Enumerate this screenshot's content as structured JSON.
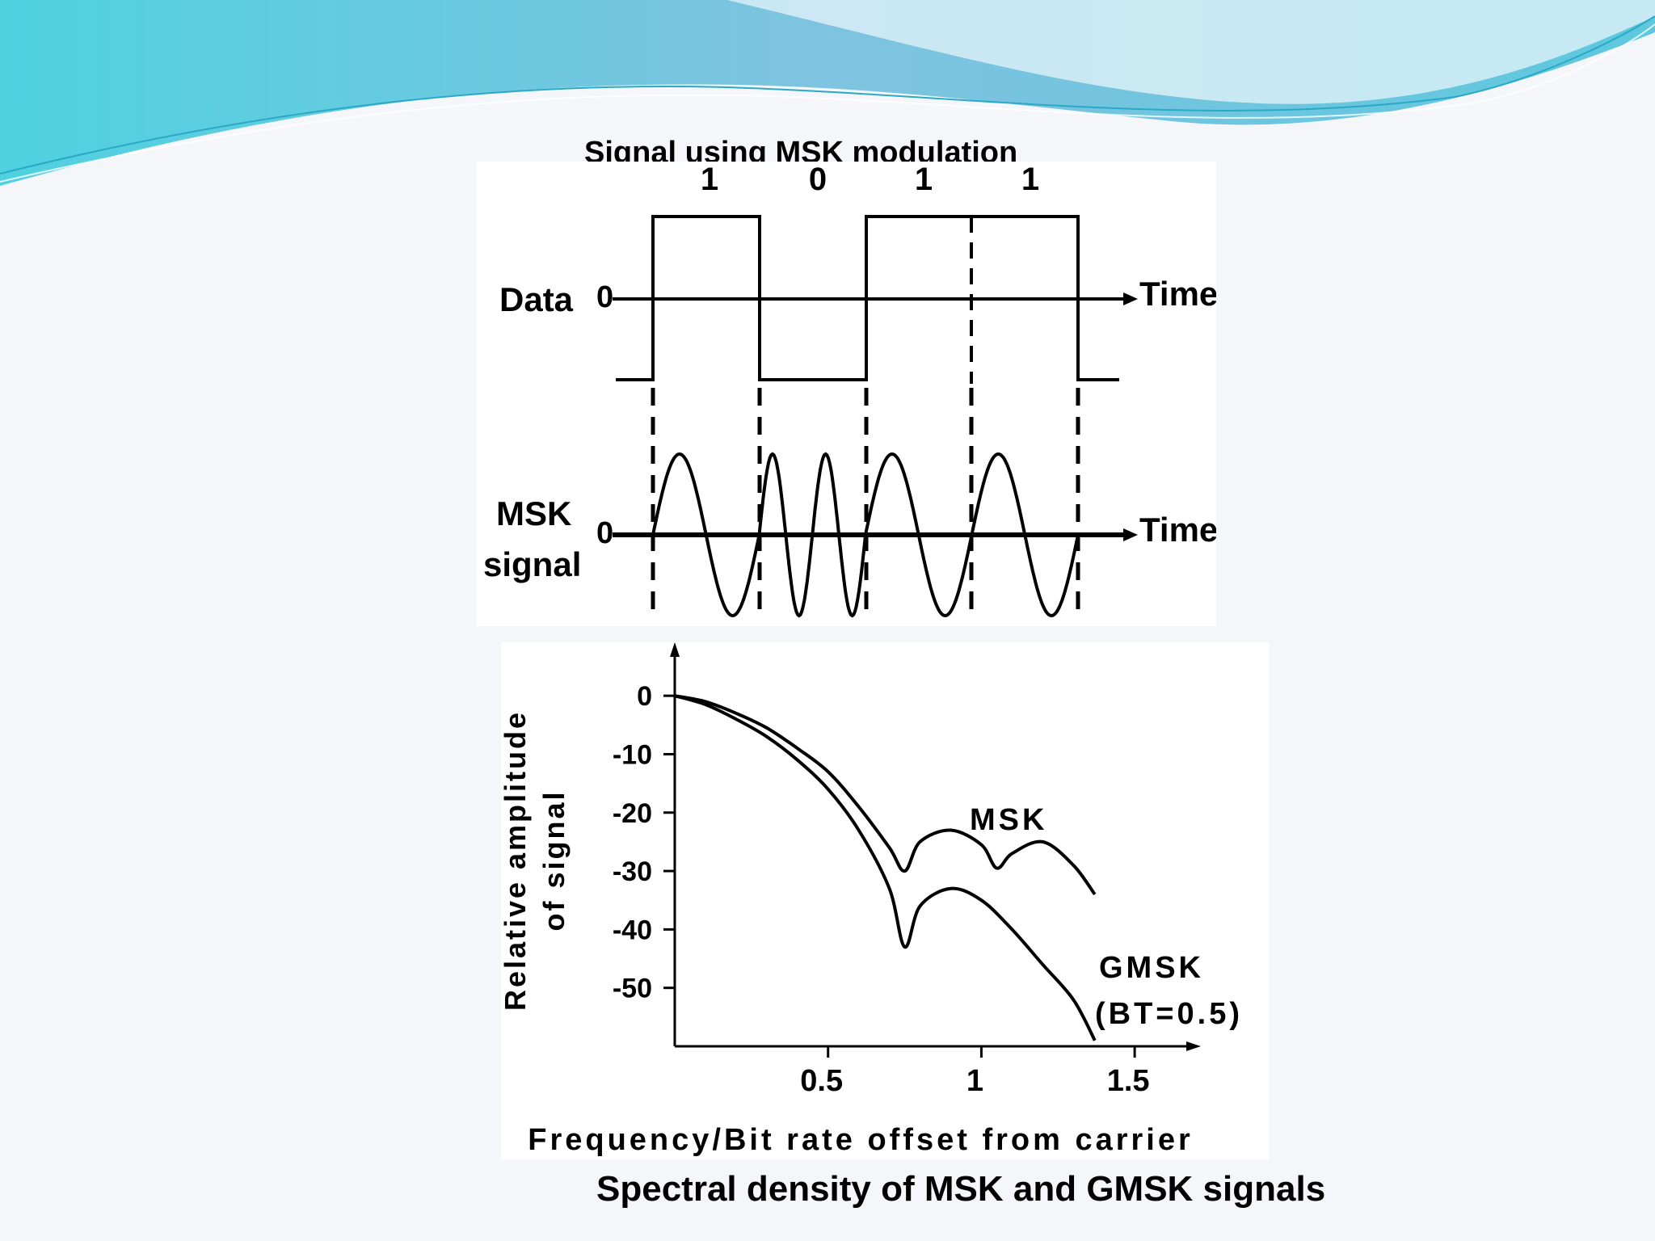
{
  "slide": {
    "title": "Signal using MSK modulation",
    "caption": "Spectral density of MSK and GMSK signals"
  },
  "timing": {
    "bits": [
      "1",
      "0",
      "1",
      "1"
    ],
    "data_label": "Data",
    "msk_label_line1": "MSK",
    "msk_label_line2": "signal",
    "zero_label": "0",
    "time_label": "Time"
  },
  "chart_data": {
    "type": "line",
    "title": "",
    "xlabel": "Frequency/Bit rate offset from carrier",
    "ylabel": "Relative amplitude of signal",
    "xlim": [
      0,
      1.7
    ],
    "ylim": [
      -60,
      5
    ],
    "x_ticks": [
      "0.5",
      "1",
      "1.5"
    ],
    "y_ticks": [
      "0",
      "-10",
      "-20",
      "-30",
      "-40",
      "-50"
    ],
    "grid": false,
    "series": [
      {
        "name": "MSK",
        "x": [
          0,
          0.1,
          0.2,
          0.3,
          0.4,
          0.5,
          0.6,
          0.7,
          0.75,
          0.8,
          0.9,
          1.0,
          1.05,
          1.1,
          1.2,
          1.3,
          1.37
        ],
        "y": [
          0,
          -1,
          -3,
          -5.5,
          -9,
          -13,
          -19,
          -26,
          -30,
          -25,
          -23,
          -25.5,
          -29.5,
          -27,
          -25,
          -29,
          -34
        ]
      },
      {
        "name": "GMSK (BT=0.5)",
        "x": [
          0,
          0.1,
          0.2,
          0.3,
          0.4,
          0.5,
          0.6,
          0.7,
          0.75,
          0.8,
          0.9,
          1.0,
          1.1,
          1.2,
          1.3,
          1.37
        ],
        "y": [
          0,
          -1.5,
          -4,
          -7,
          -11,
          -16,
          -23,
          -33,
          -43,
          -36,
          -33,
          -35,
          -40,
          -46,
          -52,
          -59
        ]
      }
    ],
    "annotations": [
      "MSK",
      "GMSK",
      "(BT=0.5)"
    ]
  }
}
